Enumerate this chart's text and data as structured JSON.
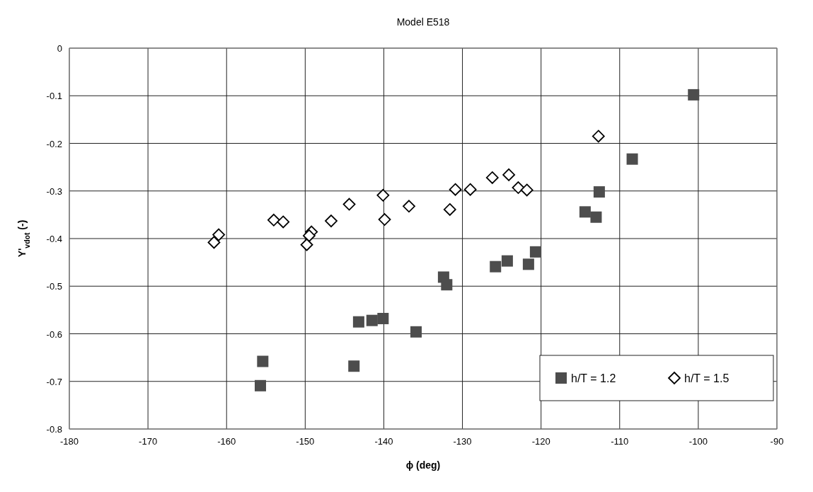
{
  "chart_data": {
    "type": "scatter",
    "title": "Model E518",
    "xlabel": "ϕ (deg)",
    "ylabel": "Y'$_{vdot}$ (-)",
    "xlim": [
      -180,
      -90
    ],
    "xticks": [
      -180,
      -170,
      -160,
      -150,
      -140,
      -130,
      -120,
      -110,
      -100,
      -90
    ],
    "ylim": [
      -0.8,
      0
    ],
    "yticks": [
      -0.8,
      -0.7,
      -0.6,
      -0.5,
      -0.4,
      -0.3,
      -0.2,
      -0.1,
      0
    ],
    "grid": true,
    "legend": "bottom right",
    "series": [
      {
        "name": "h/T = 1.2",
        "color": "#4d4d4d",
        "marker": "square",
        "x": [
          -155.4,
          -155.7,
          -143.8,
          -143.2,
          -141.5,
          -140.1,
          -135.9,
          -132.4,
          -132.0,
          -125.8,
          -124.3,
          -121.6,
          -120.7,
          -114.4,
          -113.0,
          -112.6,
          -108.4,
          -100.6
        ],
        "values": [
          -0.658,
          -0.709,
          -0.668,
          -0.575,
          -0.572,
          -0.568,
          -0.596,
          -0.481,
          -0.497,
          -0.459,
          -0.447,
          -0.454,
          -0.428,
          -0.344,
          -0.355,
          -0.302,
          -0.233,
          -0.098
        ]
      },
      {
        "name": "h/T = 1.5",
        "color": "#000000",
        "marker": "diamond",
        "x": [
          -161.6,
          -161.0,
          -154.0,
          -152.8,
          -149.2,
          -149.5,
          -149.8,
          -146.7,
          -144.4,
          -140.1,
          -139.9,
          -136.8,
          -131.6,
          -130.9,
          -129.0,
          -126.2,
          -124.1,
          -122.9,
          -121.8,
          -112.7
        ],
        "values": [
          -0.408,
          -0.392,
          -0.361,
          -0.365,
          -0.386,
          -0.394,
          -0.413,
          -0.363,
          -0.328,
          -0.309,
          -0.36,
          -0.332,
          -0.339,
          -0.297,
          -0.297,
          -0.272,
          -0.266,
          -0.293,
          -0.298,
          -0.185
        ]
      }
    ]
  }
}
